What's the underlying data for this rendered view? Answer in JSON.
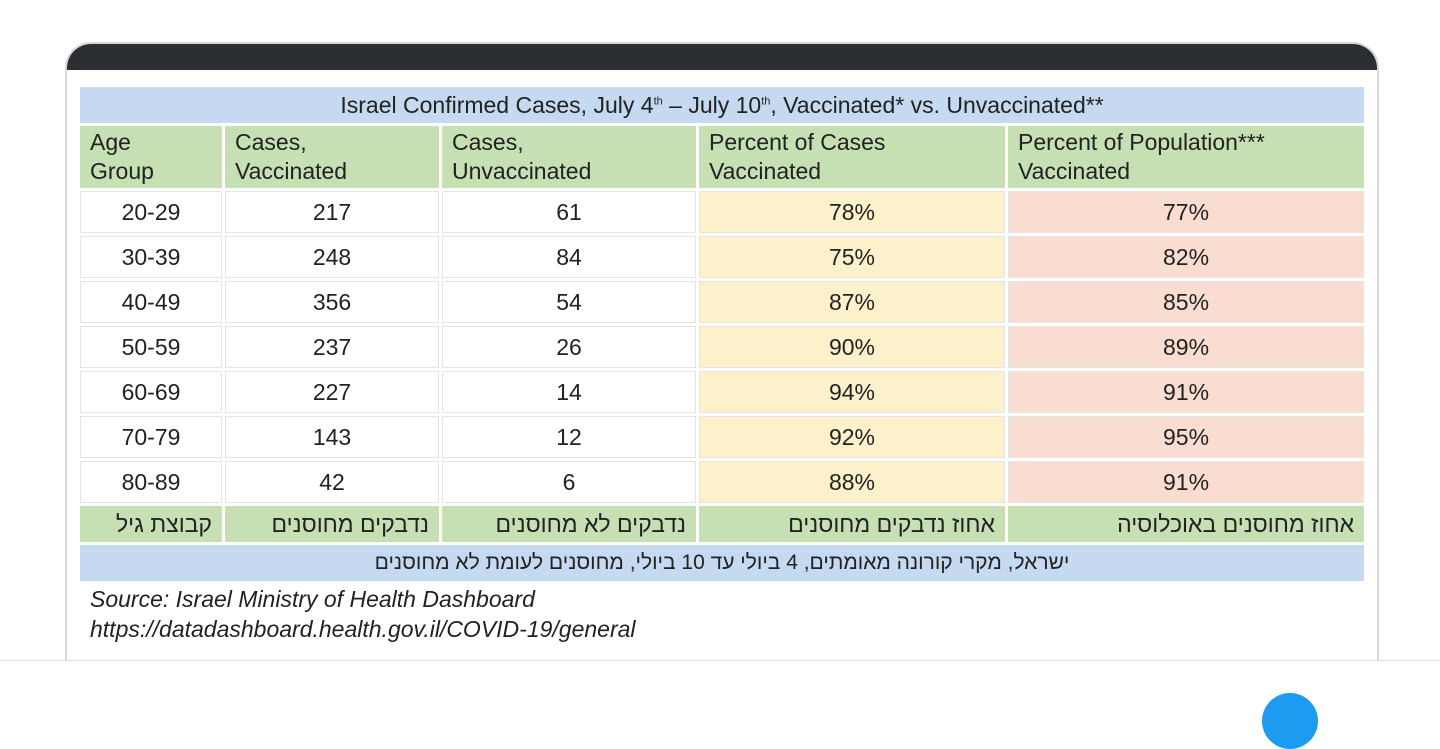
{
  "table": {
    "title": [
      "Israel Confirmed Cases, July 4",
      "th",
      " – July 10",
      "th",
      ", Vaccinated* vs. Unvaccinated**"
    ],
    "header": [
      [
        "Age",
        "Group"
      ],
      [
        "Cases,",
        "Vaccinated"
      ],
      [
        "Cases,",
        "Unvaccinated"
      ],
      [
        "Percent of Cases",
        "Vaccinated"
      ],
      [
        "Percent of Population***",
        "Vaccinated"
      ]
    ],
    "rows": [
      [
        "20-29",
        "217",
        "61",
        "78%",
        "77%"
      ],
      [
        "30-39",
        "248",
        "84",
        "75%",
        "82%"
      ],
      [
        "40-49",
        "356",
        "54",
        "87%",
        "85%"
      ],
      [
        "50-59",
        "237",
        "26",
        "90%",
        "89%"
      ],
      [
        "60-69",
        "227",
        "14",
        "94%",
        "91%"
      ],
      [
        "70-79",
        "143",
        "12",
        "92%",
        "95%"
      ],
      [
        "80-89",
        "42",
        "6",
        "88%",
        "91%"
      ]
    ],
    "hebrew_header": [
      "קבוצת גיל",
      "נדבקים מחוסנים",
      "נדבקים לא מחוסנים",
      "אחוז נדבקים מחוסנים",
      "אחוז מחוסנים באוכלוסיה"
    ],
    "hebrew_title": "ישראל, מקרי קורונה מאומתים, 4 ביולי עד 10 ביולי, מחוסנים לעומת לא מחוסנים",
    "source": [
      "Source: Israel Ministry of Health Dashboard",
      "https://datadashboard.health.gov.il/COVID-19/general"
    ]
  }
}
